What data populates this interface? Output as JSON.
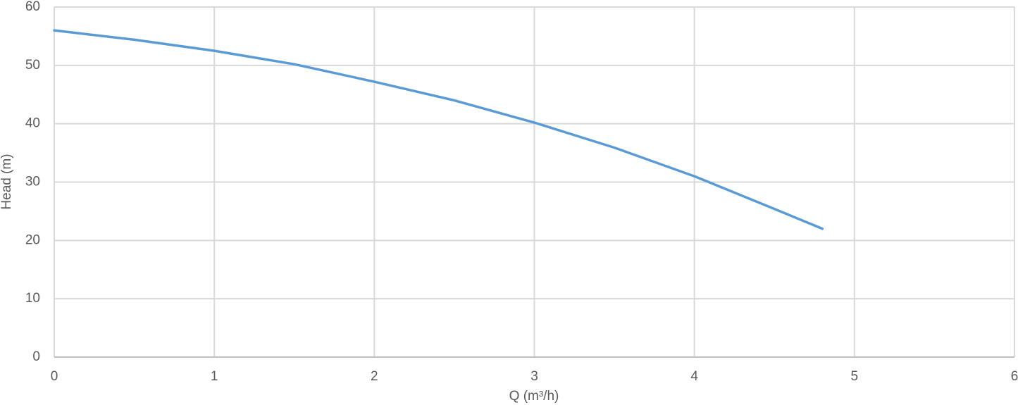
{
  "chart_data": {
    "type": "line",
    "x_label": "Q (m³/h)",
    "y_label": "Head (m)",
    "x": [
      0,
      0.5,
      1,
      1.5,
      2,
      2.5,
      3,
      3.5,
      4,
      4.5,
      4.8
    ],
    "values": [
      56,
      54.4,
      52.5,
      50.2,
      47.2,
      44,
      40.2,
      35.9,
      31,
      25.4,
      22
    ],
    "color": "#5b9bd5",
    "xlim": [
      0,
      6
    ],
    "xticks": [
      0,
      1,
      2,
      3,
      4,
      5,
      6
    ],
    "ylim": [
      0,
      60
    ],
    "yticks": [
      0,
      10,
      20,
      30,
      40,
      50,
      60
    ],
    "grid": true
  }
}
